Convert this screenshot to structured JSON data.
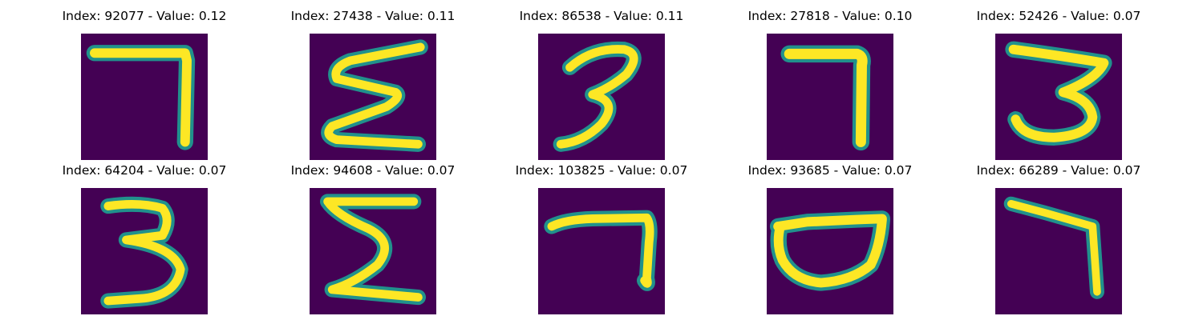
{
  "figure": {
    "colors": {
      "background": "#440154",
      "stroke_mid": "#21918c",
      "stroke_core": "#fde725"
    },
    "panels": [
      {
        "title": "Index: 92077 - Value: 0.12",
        "digit_icon": "seven-glyph"
      },
      {
        "title": "Index: 27438 - Value: 0.11",
        "digit_icon": "sigma-glyph"
      },
      {
        "title": "Index: 86538 - Value: 0.11",
        "digit_icon": "three-glyph"
      },
      {
        "title": "Index: 27818 - Value: 0.10",
        "digit_icon": "seven-glyph"
      },
      {
        "title": "Index: 52426 - Value: 0.07",
        "digit_icon": "three-glyph"
      },
      {
        "title": "Index: 64204 - Value: 0.07",
        "digit_icon": "three-glyph"
      },
      {
        "title": "Index: 94608 - Value: 0.07",
        "digit_icon": "sigma-glyph"
      },
      {
        "title": "Index: 103825 - Value: 0.07",
        "digit_icon": "seven-glyph"
      },
      {
        "title": "Index: 93685 - Value: 0.07",
        "digit_icon": "bowl-glyph"
      },
      {
        "title": "Index: 66289 - Value: 0.07",
        "digit_icon": "seven-glyph"
      }
    ]
  }
}
